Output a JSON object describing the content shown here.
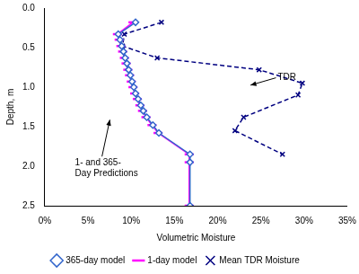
{
  "chart_data": {
    "type": "scatter",
    "x_label": "Volumetric Moisture",
    "y_label": "Depth, m",
    "xlim": [
      0,
      35
    ],
    "xticks": [
      {
        "value": 0,
        "label": "0%"
      },
      {
        "value": 5,
        "label": "5%"
      },
      {
        "value": 10,
        "label": "10%"
      },
      {
        "value": 15,
        "label": "15%"
      },
      {
        "value": 20,
        "label": "20%"
      },
      {
        "value": 25,
        "label": "25%"
      },
      {
        "value": 30,
        "label": "30%"
      },
      {
        "value": 35,
        "label": "35%"
      }
    ],
    "ylim": [
      2.5,
      0
    ],
    "yticks": [
      {
        "value": 0,
        "label": "0.0"
      },
      0.5,
      {
        "value": 1,
        "label": "1.0"
      },
      1.5,
      {
        "value": 2,
        "label": "2.0"
      },
      2.5
    ],
    "grid": false,
    "legend": "bottom",
    "series": [
      {
        "name": "365-day model",
        "color": "#3366cc",
        "marker": "diamond",
        "line_style": "solid",
        "x": [
          10.5,
          8.5,
          8.7,
          8.9,
          9.1,
          9.3,
          9.5,
          9.7,
          9.9,
          10.1,
          10.3,
          10.5,
          10.8,
          11.1,
          11.4,
          11.8,
          12.5,
          13.2,
          16.8,
          16.8,
          16.8
        ],
        "values": [
          0.18,
          0.33,
          0.4,
          0.48,
          0.55,
          0.63,
          0.7,
          0.78,
          0.85,
          0.93,
          1.0,
          1.08,
          1.15,
          1.23,
          1.3,
          1.38,
          1.48,
          1.58,
          1.85,
          1.95,
          2.5
        ]
      },
      {
        "name": "1-day model",
        "color": "#ff00ff",
        "marker": "dash",
        "line_style": "solid",
        "x": [
          10.2,
          8.4,
          8.6,
          8.8,
          9.0,
          9.2,
          9.4,
          9.6,
          9.8,
          10.0,
          10.2,
          10.4,
          10.7,
          11.0,
          11.3,
          11.7,
          12.4,
          13.1,
          16.7,
          16.7,
          16.7
        ],
        "values": [
          0.18,
          0.33,
          0.4,
          0.48,
          0.55,
          0.63,
          0.7,
          0.78,
          0.85,
          0.93,
          1.0,
          1.08,
          1.15,
          1.23,
          1.3,
          1.38,
          1.48,
          1.58,
          1.85,
          1.95,
          2.5
        ]
      },
      {
        "name": "Mean TDR Moisture",
        "color": "#000080",
        "marker": "x",
        "line_style": "dashed",
        "x": [
          13.5,
          9.2,
          9.0,
          13.0,
          24.8,
          29.8,
          29.3,
          23.0,
          22.0,
          27.5
        ],
        "values": [
          0.18,
          0.33,
          0.48,
          0.63,
          0.78,
          0.95,
          1.1,
          1.38,
          1.55,
          1.85
        ]
      }
    ],
    "annotations": [
      {
        "text": "TDR"
      },
      {
        "text": "1- and 365-\nDay Predictions"
      }
    ]
  }
}
